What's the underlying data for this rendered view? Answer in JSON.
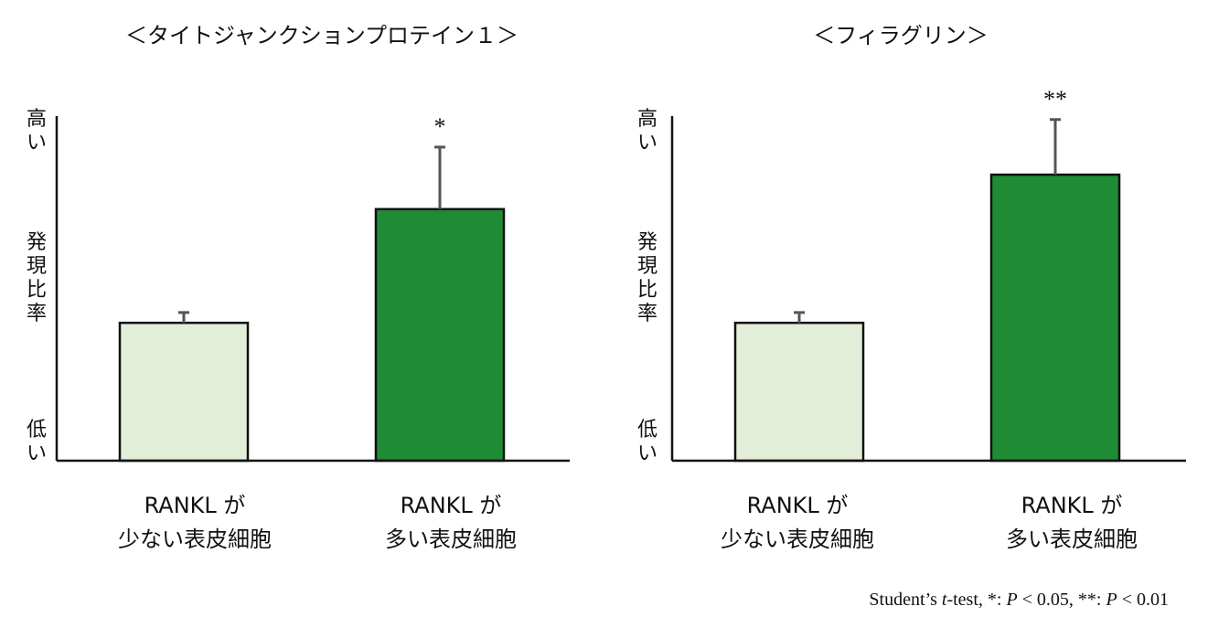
{
  "footnote": {
    "pre": "Student’s ",
    "t": "t",
    "mid1": "-test, *: ",
    "p1": "P",
    "mid2": " < 0.05, **: ",
    "p2": "P",
    "end": " < 0.01"
  },
  "chart_data": [
    {
      "type": "bar",
      "title": "＜タイトジャンクションプロテイン１＞",
      "ylabel": {
        "top": "高い",
        "middle": "発現比率",
        "bottom": "低い"
      },
      "categories": [
        {
          "line1": "RANKL が",
          "line2": "少ない表皮細胞"
        },
        {
          "line1": "RANKL が",
          "line2": "多い表皮細胞"
        }
      ],
      "values": [
        0.4,
        0.73
      ],
      "errors": [
        0.03,
        0.18
      ],
      "significance": [
        "",
        "*"
      ],
      "colors": [
        "#e3eed9",
        "#1f8c35"
      ],
      "ylim": [
        0,
        1
      ],
      "grid": false
    },
    {
      "type": "bar",
      "title": "＜フィラグリン＞",
      "ylabel": {
        "top": "高い",
        "middle": "発現比率",
        "bottom": "低い"
      },
      "categories": [
        {
          "line1": "RANKL が",
          "line2": "少ない表皮細胞"
        },
        {
          "line1": "RANKL が",
          "line2": "多い表皮細胞"
        }
      ],
      "values": [
        0.4,
        0.83
      ],
      "errors": [
        0.03,
        0.16
      ],
      "significance": [
        "",
        "**"
      ],
      "colors": [
        "#e3eed9",
        "#1f8c35"
      ],
      "ylim": [
        0,
        1
      ],
      "grid": false
    }
  ]
}
